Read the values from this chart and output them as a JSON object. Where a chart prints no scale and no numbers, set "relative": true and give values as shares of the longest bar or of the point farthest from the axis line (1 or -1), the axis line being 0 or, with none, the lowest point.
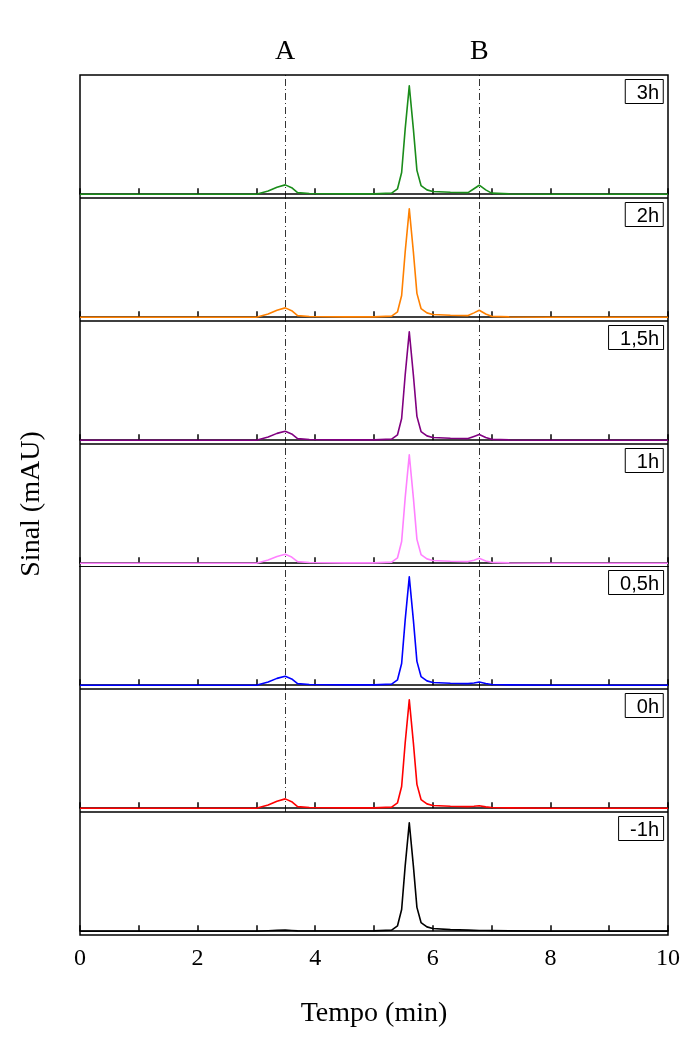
{
  "chart_data": [
    {
      "type": "line",
      "relative": true,
      "xlim": [
        0,
        10
      ],
      "xticks": [
        0,
        {
          "value": 1,
          "label": null
        },
        2,
        {
          "value": 3,
          "label": null
        },
        4,
        {
          "value": 5,
          "label": null
        },
        6,
        {
          "value": 7,
          "label": null
        },
        8,
        {
          "value": 9,
          "label": null
        },
        10
      ],
      "tick_labels": false,
      "marker": "none",
      "annotations": [
        "3h"
      ],
      "ref_lines": [
        {
          "axis": "x",
          "value": 3.49,
          "label": "A",
          "line_style": "dashed",
          "color": "#000000"
        },
        {
          "axis": "x",
          "value": 6.79,
          "label": "B",
          "line_style": "dashed",
          "color": "#000000"
        }
      ],
      "x": [
        0,
        3.0,
        3.2,
        3.35,
        3.49,
        3.6,
        3.7,
        3.9,
        4.5,
        5.0,
        5.3,
        5.4,
        5.47,
        5.53,
        5.6,
        5.67,
        5.73,
        5.8,
        5.9,
        6.0,
        6.3,
        6.6,
        6.7,
        6.79,
        6.9,
        7.0,
        7.3,
        8.0,
        10
      ],
      "series": [
        {
          "color": "#1a8c1a",
          "values": [
            0,
            0,
            0.03,
            0.065,
            0.086,
            0.06,
            0.015,
            0.006,
            0.003,
            0.003,
            0.01,
            0.05,
            0.2,
            0.6,
            1,
            0.6,
            0.22,
            0.08,
            0.04,
            0.025,
            0.018,
            0.015,
            0.05,
            0.083,
            0.04,
            0.01,
            0.003,
            0,
            0
          ]
        }
      ]
    },
    {
      "type": "line",
      "relative": true,
      "xlim": [
        0,
        10
      ],
      "xticks": [
        0,
        {
          "value": 1,
          "label": null
        },
        2,
        {
          "value": 3,
          "label": null
        },
        4,
        {
          "value": 5,
          "label": null
        },
        6,
        {
          "value": 7,
          "label": null
        },
        8,
        {
          "value": 9,
          "label": null
        },
        10
      ],
      "tick_labels": false,
      "marker": "none",
      "annotations": [
        "2h"
      ],
      "ref_lines": [
        {
          "axis": "x",
          "value": 3.49,
          "label": null,
          "line_style": "dashed",
          "color": "#000000"
        },
        {
          "axis": "x",
          "value": 6.79,
          "label": null,
          "line_style": "dashed",
          "color": "#000000"
        }
      ],
      "x": [
        0,
        3.0,
        3.2,
        3.35,
        3.49,
        3.6,
        3.7,
        3.9,
        4.5,
        5.0,
        5.3,
        5.4,
        5.47,
        5.53,
        5.6,
        5.67,
        5.73,
        5.8,
        5.9,
        6.0,
        6.3,
        6.6,
        6.7,
        6.79,
        6.9,
        7.0,
        7.3,
        8.0,
        10
      ],
      "series": [
        {
          "color": "#ff8000",
          "values": [
            0,
            0,
            0.03,
            0.065,
            0.086,
            0.06,
            0.015,
            0.006,
            0.003,
            0.003,
            0.01,
            0.05,
            0.2,
            0.6,
            1,
            0.6,
            0.22,
            0.08,
            0.04,
            0.025,
            0.018,
            0.015,
            0.04,
            0.064,
            0.03,
            0.008,
            0.003,
            0,
            0
          ]
        }
      ]
    },
    {
      "type": "line",
      "relative": true,
      "xlim": [
        0,
        10
      ],
      "xticks": [
        0,
        {
          "value": 1,
          "label": null
        },
        2,
        {
          "value": 3,
          "label": null
        },
        4,
        {
          "value": 5,
          "label": null
        },
        6,
        {
          "value": 7,
          "label": null
        },
        8,
        {
          "value": 9,
          "label": null
        },
        10
      ],
      "tick_labels": false,
      "marker": "none",
      "annotations": [
        "1,5h"
      ],
      "ref_lines": [
        {
          "axis": "x",
          "value": 3.49,
          "label": null,
          "line_style": "dashed",
          "color": "#000000"
        },
        {
          "axis": "x",
          "value": 6.79,
          "label": null,
          "line_style": "dashed",
          "color": "#000000"
        }
      ],
      "x": [
        0,
        3.0,
        3.2,
        3.35,
        3.49,
        3.6,
        3.7,
        3.9,
        4.5,
        5.0,
        5.3,
        5.4,
        5.47,
        5.53,
        5.6,
        5.67,
        5.73,
        5.8,
        5.9,
        6.0,
        6.3,
        6.6,
        6.7,
        6.79,
        6.9,
        7.0,
        7.3,
        8.0,
        10
      ],
      "series": [
        {
          "color": "#800080",
          "values": [
            0,
            0,
            0.03,
            0.063,
            0.083,
            0.058,
            0.015,
            0.006,
            0.003,
            0.003,
            0.01,
            0.05,
            0.2,
            0.6,
            1,
            0.6,
            0.22,
            0.08,
            0.04,
            0.025,
            0.018,
            0.015,
            0.035,
            0.053,
            0.025,
            0.008,
            0.003,
            0,
            0
          ]
        }
      ]
    },
    {
      "type": "line",
      "relative": true,
      "xlim": [
        0,
        10
      ],
      "xticks": [
        0,
        {
          "value": 1,
          "label": null
        },
        2,
        {
          "value": 3,
          "label": null
        },
        4,
        {
          "value": 5,
          "label": null
        },
        6,
        {
          "value": 7,
          "label": null
        },
        8,
        {
          "value": 9,
          "label": null
        },
        10
      ],
      "tick_labels": false,
      "marker": "none",
      "annotations": [
        "1h"
      ],
      "ylabel": "Sinal (mAU)",
      "ref_lines": [
        {
          "axis": "x",
          "value": 3.49,
          "label": null,
          "line_style": "dashed",
          "color": "#000000"
        },
        {
          "axis": "x",
          "value": 6.79,
          "label": null,
          "line_style": "dashed",
          "color": "#000000"
        }
      ],
      "x": [
        0,
        3.0,
        3.2,
        3.35,
        3.49,
        3.6,
        3.7,
        3.9,
        4.5,
        5.0,
        5.3,
        5.4,
        5.47,
        5.53,
        5.6,
        5.67,
        5.73,
        5.8,
        5.9,
        6.0,
        6.3,
        6.6,
        6.7,
        6.79,
        6.9,
        7.0,
        7.3,
        8.0,
        10
      ],
      "series": [
        {
          "color": "#ff80ff",
          "values": [
            0,
            0,
            0.03,
            0.062,
            0.082,
            0.057,
            0.015,
            0.006,
            0.003,
            0.003,
            0.01,
            0.05,
            0.2,
            0.6,
            1,
            0.6,
            0.22,
            0.08,
            0.04,
            0.025,
            0.018,
            0.015,
            0.028,
            0.045,
            0.02,
            0.008,
            0.003,
            0,
            0
          ]
        }
      ]
    },
    {
      "type": "line",
      "relative": true,
      "xlim": [
        0,
        10
      ],
      "xticks": [
        0,
        {
          "value": 1,
          "label": null
        },
        2,
        {
          "value": 3,
          "label": null
        },
        4,
        {
          "value": 5,
          "label": null
        },
        6,
        {
          "value": 7,
          "label": null
        },
        8,
        {
          "value": 9,
          "label": null
        },
        10
      ],
      "tick_labels": false,
      "marker": "none",
      "annotations": [
        "0,5h"
      ],
      "ref_lines": [
        {
          "axis": "x",
          "value": 3.49,
          "label": null,
          "line_style": "dashed",
          "color": "#000000"
        },
        {
          "axis": "x",
          "value": 6.79,
          "label": null,
          "line_style": "dashed",
          "color": "#000000"
        }
      ],
      "x": [
        0,
        3.0,
        3.2,
        3.35,
        3.49,
        3.6,
        3.7,
        3.9,
        4.5,
        5.0,
        5.3,
        5.4,
        5.47,
        5.53,
        5.6,
        5.67,
        5.73,
        5.8,
        5.9,
        6.0,
        6.3,
        6.6,
        6.7,
        6.79,
        6.9,
        7.0,
        7.3,
        8.0,
        10
      ],
      "series": [
        {
          "color": "#0000ff",
          "values": [
            0,
            0,
            0.03,
            0.063,
            0.083,
            0.058,
            0.015,
            0.006,
            0.003,
            0.003,
            0.01,
            0.05,
            0.2,
            0.6,
            1,
            0.6,
            0.22,
            0.08,
            0.04,
            0.025,
            0.018,
            0.015,
            0.02,
            0.03,
            0.015,
            0.006,
            0.003,
            0,
            0
          ]
        }
      ]
    },
    {
      "type": "line",
      "relative": true,
      "xlim": [
        0,
        10
      ],
      "xticks": [
        0,
        {
          "value": 1,
          "label": null
        },
        2,
        {
          "value": 3,
          "label": null
        },
        4,
        {
          "value": 5,
          "label": null
        },
        6,
        {
          "value": 7,
          "label": null
        },
        8,
        {
          "value": 9,
          "label": null
        },
        10
      ],
      "tick_labels": false,
      "marker": "none",
      "annotations": [
        "0h"
      ],
      "ref_lines": [
        {
          "axis": "x",
          "value": 3.49,
          "label": null,
          "line_style": "dashed",
          "color": "#000000"
        }
      ],
      "x": [
        0,
        3.0,
        3.2,
        3.35,
        3.49,
        3.6,
        3.7,
        3.9,
        4.5,
        5.0,
        5.3,
        5.4,
        5.47,
        5.53,
        5.6,
        5.67,
        5.73,
        5.8,
        5.9,
        6.0,
        6.3,
        6.6,
        6.7,
        6.79,
        6.9,
        7.0,
        7.3,
        8.0,
        10
      ],
      "series": [
        {
          "color": "#ff0000",
          "values": [
            0,
            0,
            0.03,
            0.065,
            0.086,
            0.06,
            0.015,
            0.006,
            0.003,
            0.003,
            0.01,
            0.05,
            0.2,
            0.6,
            1,
            0.6,
            0.22,
            0.08,
            0.04,
            0.025,
            0.018,
            0.015,
            0.018,
            0.022,
            0.012,
            0.006,
            0.003,
            0,
            0
          ]
        }
      ]
    },
    {
      "type": "line",
      "relative": true,
      "xlim": [
        0,
        10
      ],
      "xticks": [
        0,
        {
          "value": 1,
          "label": null
        },
        2,
        {
          "value": 3,
          "label": null
        },
        4,
        {
          "value": 5,
          "label": null
        },
        6,
        {
          "value": 7,
          "label": null
        },
        8,
        {
          "value": 9,
          "label": null
        },
        10
      ],
      "tick_labels": "x",
      "marker": "none",
      "annotations": [
        "-1h"
      ],
      "xlabel": "Tempo (min)",
      "x": [
        0,
        3.0,
        3.2,
        3.35,
        3.49,
        3.6,
        3.7,
        3.9,
        4.5,
        5.0,
        5.3,
        5.4,
        5.47,
        5.53,
        5.6,
        5.67,
        5.73,
        5.8,
        5.9,
        6.0,
        6.3,
        6.6,
        6.7,
        6.79,
        6.9,
        7.0,
        7.3,
        8.0,
        10
      ],
      "series": [
        {
          "color": "#000000",
          "values": [
            0,
            0,
            0.004,
            0.008,
            0.01,
            0.006,
            0.003,
            0.002,
            0.002,
            0.003,
            0.01,
            0.05,
            0.2,
            0.6,
            1,
            0.6,
            0.22,
            0.08,
            0.04,
            0.025,
            0.015,
            0.01,
            0.008,
            0.006,
            0.006,
            0.005,
            0.003,
            0,
            0
          ]
        }
      ]
    }
  ]
}
